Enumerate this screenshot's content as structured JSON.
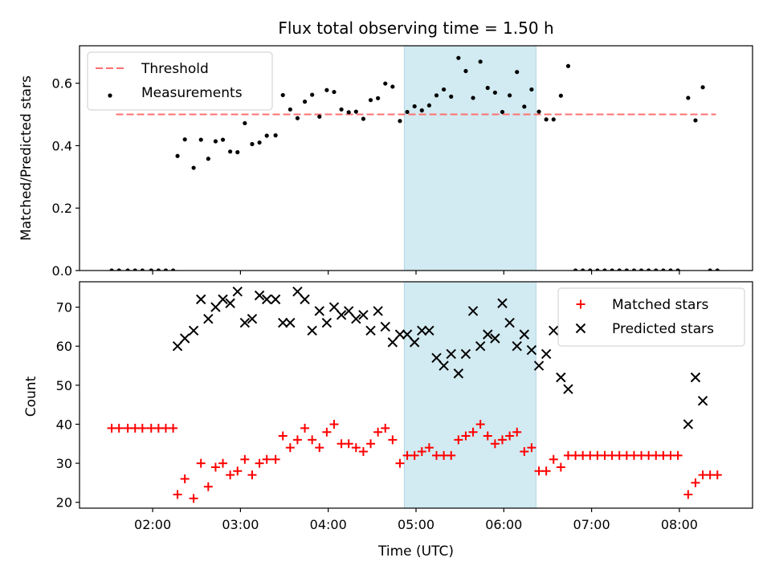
{
  "title": "Flux total observing time = 1.50 h",
  "chart_data": [
    {
      "type": "scatter",
      "ylabel": "Matched/Predicted stars",
      "xlim": [
        "01:10",
        "08:50"
      ],
      "ylim": [
        0,
        0.72
      ],
      "yticks": [
        "0.0",
        "0.2",
        "0.4",
        "0.6"
      ],
      "ytick_values": [
        0,
        0.2,
        0.4,
        0.6
      ],
      "xticks": [
        "02:00",
        "03:00",
        "04:00",
        "05:00",
        "06:00",
        "07:00",
        "08:00"
      ],
      "shaded_region": {
        "from": "04:52",
        "to": "06:22",
        "color": "#add8e6"
      },
      "legend_position": "top-left",
      "threshold": {
        "name": "Threshold",
        "value": 0.5,
        "from": "01:35",
        "to": "08:25",
        "color": "#ff7070",
        "style": "dashed"
      },
      "series": [
        {
          "name": "Measurements",
          "color": "#000000",
          "marker": "dot",
          "x": [
            "01:32",
            "01:37",
            "01:43",
            "01:48",
            "01:53",
            "01:59",
            "02:04",
            "02:09",
            "02:14",
            "02:17",
            "02:22",
            "02:28",
            "02:33",
            "02:38",
            "02:43",
            "02:48",
            "02:53",
            "02:58",
            "03:03",
            "03:08",
            "03:13",
            "03:18",
            "03:24",
            "03:29",
            "03:34",
            "03:39",
            "03:44",
            "03:49",
            "03:54",
            "03:59",
            "04:04",
            "04:09",
            "04:14",
            "04:19",
            "04:24",
            "04:29",
            "04:34",
            "04:39",
            "04:44",
            "04:49",
            "04:54",
            "04:59",
            "05:04",
            "05:09",
            "05:14",
            "05:19",
            "05:24",
            "05:29",
            "05:34",
            "05:39",
            "05:44",
            "05:49",
            "05:54",
            "05:59",
            "06:04",
            "06:09",
            "06:14",
            "06:19",
            "06:24",
            "06:29",
            "06:34",
            "06:39",
            "06:44",
            "06:49",
            "06:54",
            "06:59",
            "07:04",
            "07:09",
            "07:14",
            "07:19",
            "07:24",
            "07:29",
            "07:34",
            "07:39",
            "07:44",
            "07:49",
            "07:54",
            "07:59",
            "08:06",
            "08:11",
            "08:16",
            "08:21",
            "08:26"
          ],
          "y": [
            0,
            0,
            0,
            0,
            0,
            0,
            0,
            0,
            0,
            0.367,
            0.42,
            0.329,
            0.419,
            0.358,
            0.414,
            0.419,
            0.381,
            0.379,
            0.472,
            0.405,
            0.41,
            0.432,
            0.433,
            0.562,
            0.516,
            0.488,
            0.541,
            0.563,
            0.493,
            0.578,
            0.572,
            0.516,
            0.507,
            0.509,
            0.486,
            0.546,
            0.552,
            0.599,
            0.589,
            0.479,
            0.508,
            0.526,
            0.513,
            0.529,
            0.561,
            0.58,
            0.557,
            0.681,
            0.639,
            0.553,
            0.669,
            0.585,
            0.57,
            0.508,
            0.561,
            0.636,
            0.525,
            0.58,
            0.509,
            0.484,
            0.484,
            0.56,
            0.655,
            0,
            0,
            0,
            0,
            0,
            0,
            0,
            0,
            0,
            0,
            0,
            0,
            0,
            0,
            0,
            0.553,
            0.481,
            0.587,
            0,
            0
          ]
        }
      ]
    },
    {
      "type": "scatter",
      "xlabel": "Time (UTC)",
      "ylabel": "Count",
      "xlim": [
        "01:10",
        "08:50"
      ],
      "ylim": [
        18.5,
        76.5
      ],
      "yticks": [
        "20",
        "30",
        "40",
        "50",
        "60",
        "70"
      ],
      "ytick_values": [
        20,
        30,
        40,
        50,
        60,
        70
      ],
      "xticks": [
        "02:00",
        "03:00",
        "04:00",
        "05:00",
        "06:00",
        "07:00",
        "08:00"
      ],
      "shaded_region": {
        "from": "04:52",
        "to": "06:22",
        "color": "#add8e6"
      },
      "legend_position": "top-right",
      "series": [
        {
          "name": "Matched stars",
          "color": "#ff0000",
          "marker": "plus",
          "x": [
            "01:32",
            "01:37",
            "01:43",
            "01:48",
            "01:53",
            "01:59",
            "02:04",
            "02:09",
            "02:14",
            "02:17",
            "02:22",
            "02:28",
            "02:33",
            "02:38",
            "02:43",
            "02:48",
            "02:53",
            "02:58",
            "03:03",
            "03:08",
            "03:13",
            "03:18",
            "03:24",
            "03:29",
            "03:34",
            "03:39",
            "03:44",
            "03:49",
            "03:54",
            "03:59",
            "04:04",
            "04:09",
            "04:14",
            "04:19",
            "04:24",
            "04:29",
            "04:34",
            "04:39",
            "04:44",
            "04:49",
            "04:54",
            "04:59",
            "05:04",
            "05:09",
            "05:14",
            "05:19",
            "05:24",
            "05:29",
            "05:34",
            "05:39",
            "05:44",
            "05:49",
            "05:54",
            "05:59",
            "06:04",
            "06:09",
            "06:14",
            "06:19",
            "06:24",
            "06:29",
            "06:34",
            "06:39",
            "06:44",
            "06:49",
            "06:54",
            "06:59",
            "07:04",
            "07:09",
            "07:14",
            "07:19",
            "07:24",
            "07:29",
            "07:34",
            "07:39",
            "07:44",
            "07:49",
            "07:54",
            "07:59",
            "08:06",
            "08:11",
            "08:16",
            "08:21",
            "08:26"
          ],
          "y": [
            39,
            39,
            39,
            39,
            39,
            39,
            39,
            39,
            39,
            22,
            26,
            21,
            30,
            24,
            29,
            30,
            27,
            28,
            31,
            27,
            30,
            31,
            31,
            37,
            34,
            36,
            39,
            36,
            34,
            38,
            40,
            35,
            35,
            34,
            33,
            35,
            38,
            39,
            36,
            30,
            32,
            32,
            33,
            34,
            32,
            32,
            32,
            36,
            37,
            38,
            40,
            37,
            35,
            36,
            37,
            38,
            33,
            34,
            28,
            28,
            31,
            29,
            32,
            32,
            32,
            32,
            32,
            32,
            32,
            32,
            32,
            32,
            32,
            32,
            32,
            32,
            32,
            32,
            22,
            25,
            27,
            27,
            27
          ]
        },
        {
          "name": "Predicted stars",
          "color": "#000000",
          "marker": "x",
          "x": [
            "02:17",
            "02:22",
            "02:28",
            "02:33",
            "02:38",
            "02:43",
            "02:48",
            "02:53",
            "02:58",
            "03:03",
            "03:08",
            "03:13",
            "03:18",
            "03:24",
            "03:29",
            "03:34",
            "03:39",
            "03:44",
            "03:49",
            "03:54",
            "03:59",
            "04:04",
            "04:09",
            "04:14",
            "04:19",
            "04:24",
            "04:29",
            "04:34",
            "04:39",
            "04:44",
            "04:49",
            "04:54",
            "04:59",
            "05:04",
            "05:09",
            "05:14",
            "05:19",
            "05:24",
            "05:29",
            "05:34",
            "05:39",
            "05:44",
            "05:49",
            "05:54",
            "05:59",
            "06:04",
            "06:09",
            "06:14",
            "06:19",
            "06:24",
            "06:29",
            "06:34",
            "06:39",
            "06:44",
            "08:06",
            "08:11",
            "08:16"
          ],
          "y": [
            60,
            62,
            64,
            72,
            67,
            70,
            72,
            71,
            74,
            66,
            67,
            73,
            72,
            72,
            66,
            66,
            74,
            72,
            64,
            69,
            66,
            70,
            68,
            69,
            67,
            68,
            64,
            69,
            65,
            61,
            63,
            63,
            61,
            64,
            64,
            57,
            55,
            58,
            53,
            58,
            69,
            60,
            63,
            62,
            71,
            66,
            60,
            63,
            59,
            55,
            58,
            64,
            52,
            49,
            40,
            52,
            46
          ]
        }
      ]
    }
  ]
}
